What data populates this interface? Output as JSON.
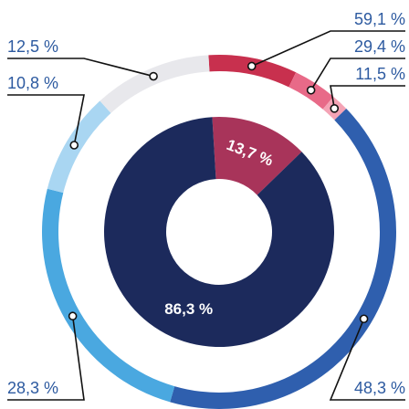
{
  "chart_data": {
    "type": "nested-donut",
    "inner": {
      "values": [
        13.7,
        86.3
      ],
      "value_labels": [
        "13,7 %",
        "86,3 %"
      ],
      "colors": [
        "#a8345a",
        "#1c2a5c"
      ]
    },
    "outer": [
      {
        "values": [
          59.1,
          29.4,
          11.5
        ],
        "value_labels": [
          "59,1 %",
          "29,4 %",
          "11,5 %"
        ],
        "colors": [
          "#c8304e",
          "#e86a88",
          "#f4a3b5"
        ]
      },
      {
        "values": [
          48.3,
          28.3,
          10.8,
          12.5
        ],
        "value_labels": [
          "48,3 %",
          "28,3 %",
          "10,8 %",
          "12,5 %"
        ],
        "colors": [
          "#2f5fae",
          "#4aa8e0",
          "#a9d6f2",
          "#e8e8ec"
        ]
      }
    ]
  }
}
